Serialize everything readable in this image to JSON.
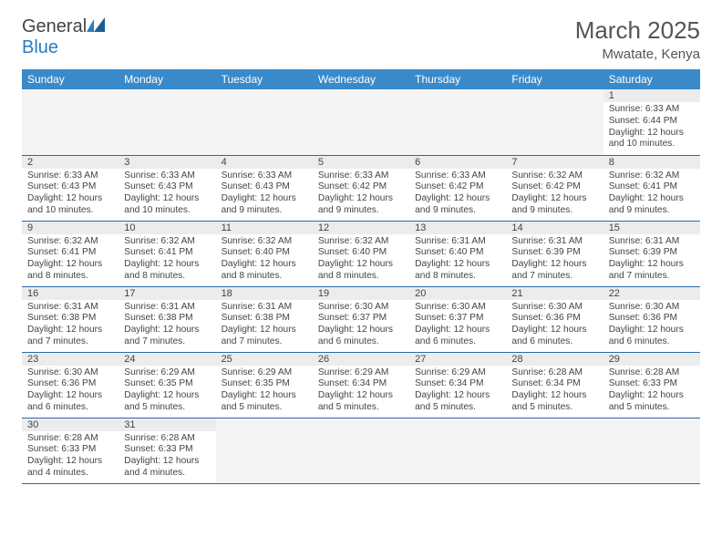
{
  "brand": {
    "general": "General",
    "blue": "Blue"
  },
  "title": {
    "month": "March 2025",
    "location": "Mwatate, Kenya"
  },
  "style": {
    "header_bg": "#3a8ac9",
    "header_fg": "#ffffff",
    "row_border": "#2b6aa8",
    "daynum_bg": "#ececec",
    "empty_bg": "#f4f4f4",
    "brand_blue": "#2b7bbf"
  },
  "weekdays": [
    "Sunday",
    "Monday",
    "Tuesday",
    "Wednesday",
    "Thursday",
    "Friday",
    "Saturday"
  ],
  "weeks": [
    [
      null,
      null,
      null,
      null,
      null,
      null,
      {
        "n": "1",
        "sr": "Sunrise: 6:33 AM",
        "ss": "Sunset: 6:44 PM",
        "dl": "Daylight: 12 hours and 10 minutes."
      }
    ],
    [
      {
        "n": "2",
        "sr": "Sunrise: 6:33 AM",
        "ss": "Sunset: 6:43 PM",
        "dl": "Daylight: 12 hours and 10 minutes."
      },
      {
        "n": "3",
        "sr": "Sunrise: 6:33 AM",
        "ss": "Sunset: 6:43 PM",
        "dl": "Daylight: 12 hours and 10 minutes."
      },
      {
        "n": "4",
        "sr": "Sunrise: 6:33 AM",
        "ss": "Sunset: 6:43 PM",
        "dl": "Daylight: 12 hours and 9 minutes."
      },
      {
        "n": "5",
        "sr": "Sunrise: 6:33 AM",
        "ss": "Sunset: 6:42 PM",
        "dl": "Daylight: 12 hours and 9 minutes."
      },
      {
        "n": "6",
        "sr": "Sunrise: 6:33 AM",
        "ss": "Sunset: 6:42 PM",
        "dl": "Daylight: 12 hours and 9 minutes."
      },
      {
        "n": "7",
        "sr": "Sunrise: 6:32 AM",
        "ss": "Sunset: 6:42 PM",
        "dl": "Daylight: 12 hours and 9 minutes."
      },
      {
        "n": "8",
        "sr": "Sunrise: 6:32 AM",
        "ss": "Sunset: 6:41 PM",
        "dl": "Daylight: 12 hours and 9 minutes."
      }
    ],
    [
      {
        "n": "9",
        "sr": "Sunrise: 6:32 AM",
        "ss": "Sunset: 6:41 PM",
        "dl": "Daylight: 12 hours and 8 minutes."
      },
      {
        "n": "10",
        "sr": "Sunrise: 6:32 AM",
        "ss": "Sunset: 6:41 PM",
        "dl": "Daylight: 12 hours and 8 minutes."
      },
      {
        "n": "11",
        "sr": "Sunrise: 6:32 AM",
        "ss": "Sunset: 6:40 PM",
        "dl": "Daylight: 12 hours and 8 minutes."
      },
      {
        "n": "12",
        "sr": "Sunrise: 6:32 AM",
        "ss": "Sunset: 6:40 PM",
        "dl": "Daylight: 12 hours and 8 minutes."
      },
      {
        "n": "13",
        "sr": "Sunrise: 6:31 AM",
        "ss": "Sunset: 6:40 PM",
        "dl": "Daylight: 12 hours and 8 minutes."
      },
      {
        "n": "14",
        "sr": "Sunrise: 6:31 AM",
        "ss": "Sunset: 6:39 PM",
        "dl": "Daylight: 12 hours and 7 minutes."
      },
      {
        "n": "15",
        "sr": "Sunrise: 6:31 AM",
        "ss": "Sunset: 6:39 PM",
        "dl": "Daylight: 12 hours and 7 minutes."
      }
    ],
    [
      {
        "n": "16",
        "sr": "Sunrise: 6:31 AM",
        "ss": "Sunset: 6:38 PM",
        "dl": "Daylight: 12 hours and 7 minutes."
      },
      {
        "n": "17",
        "sr": "Sunrise: 6:31 AM",
        "ss": "Sunset: 6:38 PM",
        "dl": "Daylight: 12 hours and 7 minutes."
      },
      {
        "n": "18",
        "sr": "Sunrise: 6:31 AM",
        "ss": "Sunset: 6:38 PM",
        "dl": "Daylight: 12 hours and 7 minutes."
      },
      {
        "n": "19",
        "sr": "Sunrise: 6:30 AM",
        "ss": "Sunset: 6:37 PM",
        "dl": "Daylight: 12 hours and 6 minutes."
      },
      {
        "n": "20",
        "sr": "Sunrise: 6:30 AM",
        "ss": "Sunset: 6:37 PM",
        "dl": "Daylight: 12 hours and 6 minutes."
      },
      {
        "n": "21",
        "sr": "Sunrise: 6:30 AM",
        "ss": "Sunset: 6:36 PM",
        "dl": "Daylight: 12 hours and 6 minutes."
      },
      {
        "n": "22",
        "sr": "Sunrise: 6:30 AM",
        "ss": "Sunset: 6:36 PM",
        "dl": "Daylight: 12 hours and 6 minutes."
      }
    ],
    [
      {
        "n": "23",
        "sr": "Sunrise: 6:30 AM",
        "ss": "Sunset: 6:36 PM",
        "dl": "Daylight: 12 hours and 6 minutes."
      },
      {
        "n": "24",
        "sr": "Sunrise: 6:29 AM",
        "ss": "Sunset: 6:35 PM",
        "dl": "Daylight: 12 hours and 5 minutes."
      },
      {
        "n": "25",
        "sr": "Sunrise: 6:29 AM",
        "ss": "Sunset: 6:35 PM",
        "dl": "Daylight: 12 hours and 5 minutes."
      },
      {
        "n": "26",
        "sr": "Sunrise: 6:29 AM",
        "ss": "Sunset: 6:34 PM",
        "dl": "Daylight: 12 hours and 5 minutes."
      },
      {
        "n": "27",
        "sr": "Sunrise: 6:29 AM",
        "ss": "Sunset: 6:34 PM",
        "dl": "Daylight: 12 hours and 5 minutes."
      },
      {
        "n": "28",
        "sr": "Sunrise: 6:28 AM",
        "ss": "Sunset: 6:34 PM",
        "dl": "Daylight: 12 hours and 5 minutes."
      },
      {
        "n": "29",
        "sr": "Sunrise: 6:28 AM",
        "ss": "Sunset: 6:33 PM",
        "dl": "Daylight: 12 hours and 5 minutes."
      }
    ],
    [
      {
        "n": "30",
        "sr": "Sunrise: 6:28 AM",
        "ss": "Sunset: 6:33 PM",
        "dl": "Daylight: 12 hours and 4 minutes."
      },
      {
        "n": "31",
        "sr": "Sunrise: 6:28 AM",
        "ss": "Sunset: 6:33 PM",
        "dl": "Daylight: 12 hours and 4 minutes."
      },
      null,
      null,
      null,
      null,
      null
    ]
  ]
}
